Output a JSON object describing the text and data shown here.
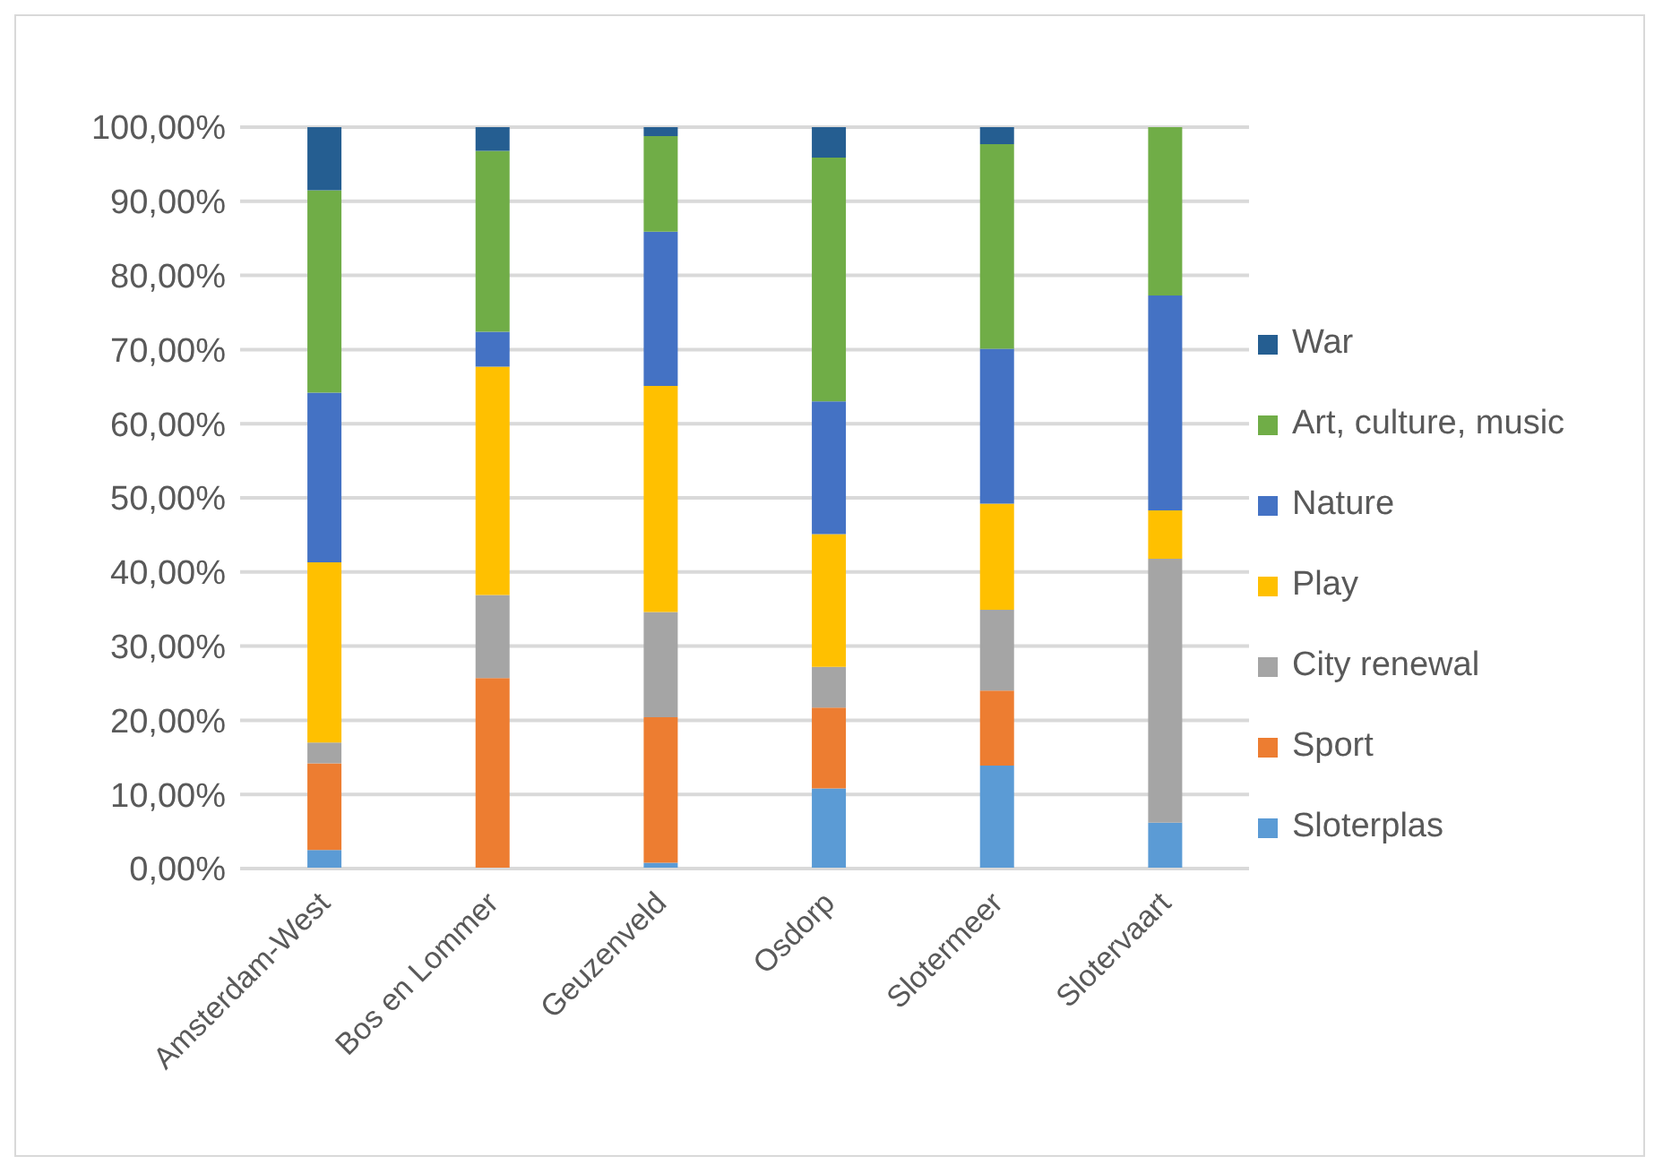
{
  "chart_data": {
    "type": "bar",
    "stacked": true,
    "categories": [
      "Amsterdam-West",
      "Bos en Lommer",
      "Geuzenveld",
      "Osdorp",
      "Slotermeer",
      "Slotervaart"
    ],
    "series": [
      {
        "name": "Sloterplas",
        "color": "#5b9bd5",
        "values": [
          2.5,
          0,
          0.8,
          10.8,
          13.9,
          6.2
        ]
      },
      {
        "name": "Sport",
        "color": "#ed7d31",
        "values": [
          11.7,
          25.7,
          19.6,
          10.9,
          10.1,
          0
        ]
      },
      {
        "name": "City renewal",
        "color": "#a5a5a5",
        "values": [
          2.8,
          11.2,
          14.2,
          5.5,
          10.9,
          35.6
        ]
      },
      {
        "name": "Play",
        "color": "#ffc000",
        "values": [
          24.3,
          30.8,
          30.5,
          17.9,
          14.3,
          6.5
        ]
      },
      {
        "name": "Nature",
        "color": "#4472c4",
        "values": [
          22.9,
          4.7,
          20.8,
          17.9,
          20.9,
          29.0
        ]
      },
      {
        "name": "Art, culture, music",
        "color": "#70ad47",
        "values": [
          27.3,
          24.4,
          12.9,
          32.9,
          27.6,
          22.7
        ]
      },
      {
        "name": "War",
        "color": "#255e91",
        "values": [
          8.5,
          3.2,
          1.2,
          4.1,
          2.3,
          0
        ]
      }
    ],
    "ylim": [
      0,
      100
    ],
    "yticks": [
      {
        "value": 0,
        "label": "0,00%"
      },
      {
        "value": 10,
        "label": "10,00%"
      },
      {
        "value": 20,
        "label": "20,00%"
      },
      {
        "value": 30,
        "label": "30,00%"
      },
      {
        "value": 40,
        "label": "40,00%"
      },
      {
        "value": 50,
        "label": "50,00%"
      },
      {
        "value": 60,
        "label": "60,00%"
      },
      {
        "value": 70,
        "label": "70,00%"
      },
      {
        "value": 80,
        "label": "80,00%"
      },
      {
        "value": 90,
        "label": "90,00%"
      },
      {
        "value": 100,
        "label": "100,00%"
      }
    ],
    "grid": "y",
    "legend": "right"
  }
}
